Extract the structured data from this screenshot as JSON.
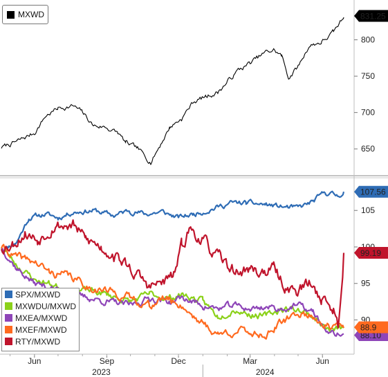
{
  "chart_data": [
    {
      "type": "line",
      "title": "MXWD",
      "series": [
        {
          "name": "MXWD",
          "color": "#000000",
          "last_value_label": "831.25"
        }
      ],
      "yticks": [
        650,
        700,
        750,
        800
      ],
      "ylim": [
        615,
        850
      ],
      "x_range": [
        "2023-04-20",
        "2024-06-28"
      ],
      "anchors": [
        [
          "2023-04-20",
          652
        ],
        [
          "2023-05-10",
          660
        ],
        [
          "2023-06-01",
          672
        ],
        [
          "2023-06-15",
          695
        ],
        [
          "2023-07-01",
          706
        ],
        [
          "2023-07-20",
          709
        ],
        [
          "2023-08-01",
          700
        ],
        [
          "2023-08-15",
          682
        ],
        [
          "2023-08-30",
          680
        ],
        [
          "2023-09-15",
          672
        ],
        [
          "2023-09-25",
          658
        ],
        [
          "2023-10-10",
          650
        ],
        [
          "2023-10-27",
          632
        ],
        [
          "2023-11-10",
          660
        ],
        [
          "2023-11-20",
          680
        ],
        [
          "2023-12-05",
          692
        ],
        [
          "2023-12-20",
          715
        ],
        [
          "2024-01-05",
          722
        ],
        [
          "2024-01-20",
          728
        ],
        [
          "2024-02-01",
          742
        ],
        [
          "2024-02-15",
          758
        ],
        [
          "2024-03-01",
          768
        ],
        [
          "2024-03-20",
          782
        ],
        [
          "2024-03-31",
          786
        ],
        [
          "2024-04-10",
          778
        ],
        [
          "2024-04-19",
          748
        ],
        [
          "2024-05-01",
          763
        ],
        [
          "2024-05-15",
          792
        ],
        [
          "2024-05-31",
          797
        ],
        [
          "2024-06-15",
          810
        ],
        [
          "2024-06-28",
          831
        ]
      ]
    },
    {
      "type": "line",
      "series": [
        {
          "name": "SPX/MXWD",
          "color": "#2e6cb5",
          "last_value_label": "107.56",
          "anchors": [
            [
              "2023-04-20",
              99.5
            ],
            [
              "2023-05-10",
              100.8
            ],
            [
              "2023-05-25",
              104.0
            ],
            [
              "2023-06-15",
              104.5
            ],
            [
              "2023-07-01",
              104.0
            ],
            [
              "2023-07-20",
              104.8
            ],
            [
              "2023-08-15",
              105.0
            ],
            [
              "2023-09-10",
              104.3
            ],
            [
              "2023-09-30",
              105.0
            ],
            [
              "2023-10-20",
              104.5
            ],
            [
              "2023-11-10",
              104.8
            ],
            [
              "2023-12-01",
              104.0
            ],
            [
              "2023-12-20",
              104.5
            ],
            [
              "2024-01-15",
              105.3
            ],
            [
              "2024-02-05",
              106.0
            ],
            [
              "2024-02-25",
              106.0
            ],
            [
              "2024-03-20",
              105.8
            ],
            [
              "2024-04-10",
              105.5
            ],
            [
              "2024-05-01",
              105.3
            ],
            [
              "2024-05-20",
              106.2
            ],
            [
              "2024-06-05",
              107.5
            ],
            [
              "2024-06-20",
              107.0
            ],
            [
              "2024-06-28",
              107.56
            ]
          ]
        },
        {
          "name": "MXWDU/MXWD",
          "color": "#8bd11a",
          "last_value_label": "",
          "anchors": [
            [
              "2023-04-20",
              100.0
            ],
            [
              "2023-05-10",
              97.5
            ],
            [
              "2023-06-01",
              95.5
            ],
            [
              "2023-06-20",
              95.0
            ],
            [
              "2023-07-15",
              94.0
            ],
            [
              "2023-08-10",
              94.0
            ],
            [
              "2023-09-01",
              93.5
            ],
            [
              "2023-10-01",
              92.5
            ],
            [
              "2023-10-25",
              93.5
            ],
            [
              "2023-11-20",
              93.0
            ],
            [
              "2023-12-05",
              93.5
            ],
            [
              "2024-01-01",
              92.5
            ],
            [
              "2024-01-20",
              90.5
            ],
            [
              "2024-02-10",
              91.5
            ],
            [
              "2024-03-01",
              90.8
            ],
            [
              "2024-03-20",
              90.5
            ],
            [
              "2024-04-10",
              91.5
            ],
            [
              "2024-05-01",
              91.5
            ],
            [
              "2024-05-20",
              90.5
            ],
            [
              "2024-06-10",
              88.5
            ],
            [
              "2024-06-28",
              88.9
            ]
          ]
        },
        {
          "name": "MXEA/MXWD",
          "color": "#8e45b8",
          "last_value_label": "88.10",
          "anchors": [
            [
              "2023-04-20",
              100.0
            ],
            [
              "2023-05-10",
              97.0
            ],
            [
              "2023-06-01",
              95.0
            ],
            [
              "2023-06-20",
              94.5
            ],
            [
              "2023-07-15",
              93.5
            ],
            [
              "2023-08-10",
              93.0
            ],
            [
              "2023-09-01",
              92.5
            ],
            [
              "2023-10-01",
              92.0
            ],
            [
              "2023-10-25",
              93.0
            ],
            [
              "2023-11-20",
              92.5
            ],
            [
              "2023-12-05",
              93.0
            ],
            [
              "2024-01-01",
              92.0
            ],
            [
              "2024-01-20",
              91.5
            ],
            [
              "2024-02-10",
              92.0
            ],
            [
              "2024-03-01",
              91.5
            ],
            [
              "2024-03-20",
              91.8
            ],
            [
              "2024-04-10",
              91.5
            ],
            [
              "2024-05-01",
              92.0
            ],
            [
              "2024-05-20",
              91.0
            ],
            [
              "2024-06-10",
              88.0
            ],
            [
              "2024-06-28",
              88.1
            ]
          ]
        },
        {
          "name": "MXEF/MXWD",
          "color": "#ff6a1f",
          "last_value_label": "88.9",
          "anchors": [
            [
              "2023-04-20",
              100.0
            ],
            [
              "2023-05-10",
              98.5
            ],
            [
              "2023-06-01",
              98.0
            ],
            [
              "2023-06-20",
              96.5
            ],
            [
              "2023-07-15",
              96.0
            ],
            [
              "2023-08-10",
              94.5
            ],
            [
              "2023-09-01",
              94.0
            ],
            [
              "2023-10-01",
              93.0
            ],
            [
              "2023-10-25",
              92.0
            ],
            [
              "2023-11-15",
              93.0
            ],
            [
              "2023-12-05",
              92.0
            ],
            [
              "2024-01-01",
              89.5
            ],
            [
              "2024-01-20",
              88.0
            ],
            [
              "2024-02-10",
              88.5
            ],
            [
              "2024-03-01",
              88.3
            ],
            [
              "2024-03-20",
              88.0
            ],
            [
              "2024-04-10",
              89.5
            ],
            [
              "2024-05-01",
              91.0
            ],
            [
              "2024-05-20",
              90.5
            ],
            [
              "2024-06-10",
              89.0
            ],
            [
              "2024-06-28",
              88.9
            ]
          ]
        },
        {
          "name": "RTY/MXWD",
          "color": "#c0142c",
          "last_value_label": "99.19",
          "anchors": [
            [
              "2023-04-20",
              100.0
            ],
            [
              "2023-05-05",
              100.5
            ],
            [
              "2023-05-20",
              102.0
            ],
            [
              "2023-06-05",
              101.0
            ],
            [
              "2023-06-25",
              103.0
            ],
            [
              "2023-07-20",
              103.0
            ],
            [
              "2023-08-05",
              101.0
            ],
            [
              "2023-08-25",
              100.0
            ],
            [
              "2023-09-10",
              99.0
            ],
            [
              "2023-10-01",
              97.0
            ],
            [
              "2023-10-25",
              94.5
            ],
            [
              "2023-11-10",
              95.0
            ],
            [
              "2023-11-25",
              96.0
            ],
            [
              "2023-12-05",
              100.0
            ],
            [
              "2023-12-15",
              102.5
            ],
            [
              "2023-12-31",
              101.0
            ],
            [
              "2024-01-15",
              99.0
            ],
            [
              "2024-01-31",
              97.5
            ],
            [
              "2024-02-15",
              96.5
            ],
            [
              "2024-03-01",
              97.0
            ],
            [
              "2024-03-15",
              96.5
            ],
            [
              "2024-03-31",
              97.0
            ],
            [
              "2024-04-15",
              94.5
            ],
            [
              "2024-05-01",
              94.0
            ],
            [
              "2024-05-15",
              95.0
            ],
            [
              "2024-05-31",
              93.0
            ],
            [
              "2024-06-15",
              91.5
            ],
            [
              "2024-06-21",
              89.0
            ],
            [
              "2024-06-28",
              99.19
            ]
          ]
        }
      ],
      "yticks": [
        90,
        95,
        100,
        105
      ],
      "ylim": [
        85.5,
        109
      ],
      "x_range": [
        "2023-04-20",
        "2024-06-28"
      ],
      "legend_position": "bottom-left"
    }
  ],
  "x_axis": {
    "month_ticks": [
      {
        "label": "Jun",
        "date": "2023-06-01"
      },
      {
        "label": "Sep",
        "date": "2023-09-01"
      },
      {
        "label": "Dec",
        "date": "2023-12-01"
      },
      {
        "label": "Mar",
        "date": "2024-03-01"
      },
      {
        "label": "Jun",
        "date": "2024-06-01"
      }
    ],
    "years": [
      {
        "label": "2023",
        "center": "2023-08-25"
      },
      {
        "label": "2024",
        "center": "2024-03-20"
      }
    ],
    "year_boundary": "2024-01-01"
  }
}
